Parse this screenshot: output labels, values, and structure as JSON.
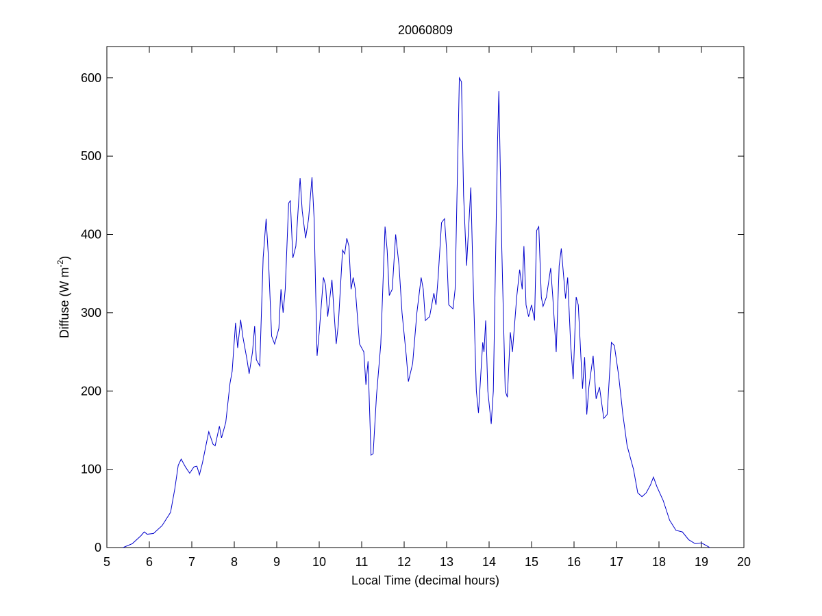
{
  "chart_data": {
    "type": "line",
    "title": "20060809",
    "xlabel": "Local Time (decimal hours)",
    "ylabel": [
      "Diffuse (W m",
      "-2",
      ")"
    ],
    "xlim": [
      5,
      20
    ],
    "ylim": [
      0,
      640
    ],
    "xticks": [
      5,
      6,
      7,
      8,
      9,
      10,
      11,
      12,
      13,
      14,
      15,
      16,
      17,
      18,
      19,
      20
    ],
    "yticks": [
      0,
      100,
      200,
      300,
      400,
      500,
      600
    ],
    "grid": false,
    "box": true,
    "x": [
      5.38,
      5.6,
      5.8,
      5.88,
      5.95,
      6.1,
      6.3,
      6.5,
      6.6,
      6.68,
      6.75,
      6.85,
      6.95,
      7.05,
      7.12,
      7.18,
      7.25,
      7.35,
      7.4,
      7.5,
      7.55,
      7.65,
      7.7,
      7.8,
      7.9,
      7.95,
      8.03,
      8.08,
      8.15,
      8.2,
      8.3,
      8.35,
      8.43,
      8.48,
      8.52,
      8.6,
      8.68,
      8.75,
      8.8,
      8.88,
      8.95,
      9.05,
      9.1,
      9.15,
      9.2,
      9.28,
      9.32,
      9.38,
      9.45,
      9.55,
      9.6,
      9.68,
      9.75,
      9.83,
      9.88,
      9.95,
      10.0,
      10.1,
      10.15,
      10.2,
      10.3,
      10.35,
      10.4,
      10.45,
      10.55,
      10.6,
      10.65,
      10.7,
      10.75,
      10.8,
      10.85,
      10.95,
      11.05,
      11.1,
      11.15,
      11.22,
      11.27,
      11.35,
      11.45,
      11.55,
      11.6,
      11.65,
      11.72,
      11.8,
      11.88,
      11.95,
      12.05,
      12.1,
      12.2,
      12.3,
      12.4,
      12.45,
      12.5,
      12.6,
      12.7,
      12.75,
      12.8,
      12.88,
      12.95,
      13.0,
      13.05,
      13.15,
      13.2,
      13.3,
      13.35,
      13.4,
      13.47,
      13.57,
      13.62,
      13.7,
      13.75,
      13.85,
      13.88,
      13.92,
      13.97,
      14.05,
      14.1,
      14.2,
      14.23,
      14.3,
      14.38,
      14.43,
      14.5,
      14.55,
      14.65,
      14.72,
      14.78,
      14.82,
      14.87,
      14.93,
      15.0,
      15.07,
      15.12,
      15.17,
      15.23,
      15.27,
      15.35,
      15.45,
      15.5,
      15.58,
      15.65,
      15.7,
      15.8,
      15.85,
      15.92,
      15.98,
      16.05,
      16.1,
      16.2,
      16.25,
      16.3,
      16.35,
      16.45,
      16.52,
      16.6,
      16.7,
      16.78,
      16.88,
      16.95,
      17.05,
      17.15,
      17.25,
      17.4,
      17.5,
      17.6,
      17.7,
      17.8,
      17.87,
      17.95,
      18.1,
      18.25,
      18.4,
      18.55,
      18.7,
      18.85,
      19.0,
      19.2
    ],
    "series": [
      {
        "color": "#0000cc",
        "values": [
          0,
          5,
          15,
          20,
          17,
          18,
          28,
          45,
          75,
          105,
          113,
          103,
          95,
          103,
          104,
          93,
          108,
          135,
          148,
          132,
          130,
          155,
          140,
          160,
          210,
          225,
          287,
          255,
          291,
          270,
          240,
          222,
          250,
          283,
          240,
          232,
          370,
          420,
          375,
          270,
          260,
          280,
          330,
          300,
          330,
          440,
          443,
          370,
          385,
          472,
          430,
          395,
          420,
          473,
          420,
          245,
          275,
          345,
          335,
          295,
          342,
          300,
          260,
          285,
          380,
          375,
          395,
          385,
          330,
          345,
          330,
          260,
          250,
          208,
          238,
          118,
          120,
          195,
          260,
          410,
          380,
          322,
          330,
          400,
          360,
          300,
          245,
          212,
          235,
          300,
          345,
          330,
          290,
          295,
          325,
          310,
          345,
          415,
          420,
          380,
          310,
          305,
          330,
          600,
          595,
          450,
          360,
          460,
          350,
          200,
          172,
          262,
          250,
          290,
          200,
          158,
          200,
          520,
          583,
          380,
          200,
          192,
          275,
          250,
          320,
          355,
          330,
          385,
          310,
          295,
          310,
          290,
          405,
          410,
          320,
          308,
          320,
          357,
          320,
          250,
          360,
          382,
          318,
          345,
          260,
          215,
          320,
          310,
          203,
          243,
          170,
          205,
          245,
          190,
          205,
          165,
          170,
          262,
          258,
          220,
          170,
          130,
          100,
          70,
          65,
          70,
          80,
          90,
          78,
          60,
          35,
          22,
          20,
          10,
          5,
          6,
          0
        ]
      }
    ]
  }
}
